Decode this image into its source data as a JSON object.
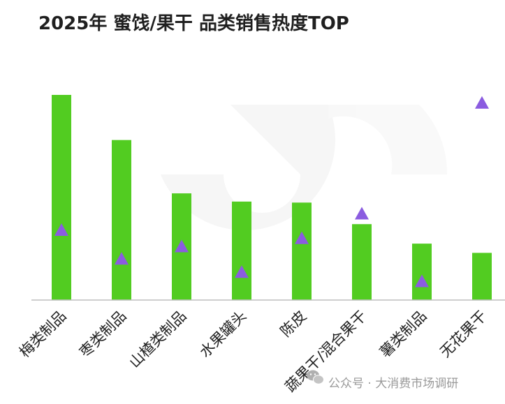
{
  "chart_data": {
    "type": "bar",
    "title": "2025年 蜜饯/果干 品类销售热度TOP",
    "categories": [
      "梅类制品",
      "枣类制品",
      "山楂类制品",
      "水果罐头",
      "陈皮",
      "蔬果干/混合果干",
      "薯类制品",
      "无花果干"
    ],
    "series": [
      {
        "marker": "bar",
        "color": "#52cc21",
        "values": [
          100,
          78,
          52,
          48,
          47.5,
          37,
          27.5,
          23
        ]
      },
      {
        "marker": "triangle",
        "color": "#8b5ce0",
        "values": [
          34,
          20,
          26,
          13.5,
          30,
          42,
          9,
          96
        ]
      }
    ],
    "ylim": [
      0,
      100
    ],
    "grid": false,
    "legend": "none",
    "baseline_color": "#bdbdbd"
  },
  "watermark": {
    "icon": "wechat-icon",
    "text": "公众号 · 大消费市场调研"
  }
}
